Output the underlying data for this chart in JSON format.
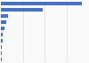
{
  "values": [
    9200000,
    4800000,
    800000,
    600000,
    420000,
    220000,
    160000,
    120000,
    90000,
    60000
  ],
  "bar_color": "#4472c4",
  "background_color": "#f9f9f9",
  "figsize": [
    1.0,
    0.71
  ],
  "dpi": 100,
  "grid_color": "#d9d9d9"
}
